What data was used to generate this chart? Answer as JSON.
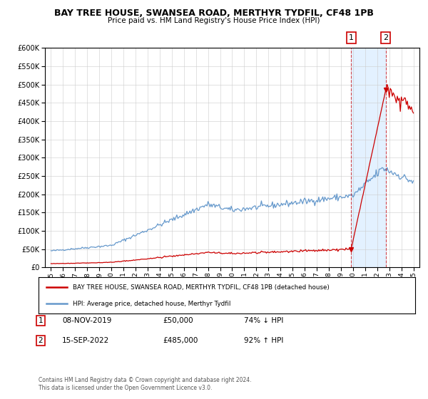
{
  "title": "BAY TREE HOUSE, SWANSEA ROAD, MERTHYR TYDFIL, CF48 1PB",
  "subtitle": "Price paid vs. HM Land Registry's House Price Index (HPI)",
  "legend_line1": "BAY TREE HOUSE, SWANSEA ROAD, MERTHYR TYDFIL, CF48 1PB (detached house)",
  "legend_line2": "HPI: Average price, detached house, Merthyr Tydfil",
  "table_row1": [
    "1",
    "08-NOV-2019",
    "£50,000",
    "74% ↓ HPI"
  ],
  "table_row2": [
    "2",
    "15-SEP-2022",
    "£485,000",
    "92% ↑ HPI"
  ],
  "footnote": "Contains HM Land Registry data © Crown copyright and database right 2024.\nThis data is licensed under the Open Government Licence v3.0.",
  "hpi_color": "#6699cc",
  "price_color": "#cc0000",
  "background_shade": "#ddeeff",
  "marker1_date_x": 2019.85,
  "marker1_price_y": 50000,
  "marker2_date_x": 2022.71,
  "marker2_price_y": 485000,
  "sale1_year": 2019.85,
  "sale2_year": 2022.71,
  "ylim": [
    0,
    600000
  ],
  "xlim": [
    1994.5,
    2025.5
  ],
  "ylabel_ticks": [
    0,
    50000,
    100000,
    150000,
    200000,
    250000,
    300000,
    350000,
    400000,
    450000,
    500000,
    550000,
    600000
  ],
  "xlabel_ticks": [
    1995,
    1996,
    1997,
    1998,
    1999,
    2000,
    2001,
    2002,
    2003,
    2004,
    2005,
    2006,
    2007,
    2008,
    2009,
    2010,
    2011,
    2012,
    2013,
    2014,
    2015,
    2016,
    2017,
    2018,
    2019,
    2020,
    2021,
    2022,
    2023,
    2024,
    2025
  ]
}
